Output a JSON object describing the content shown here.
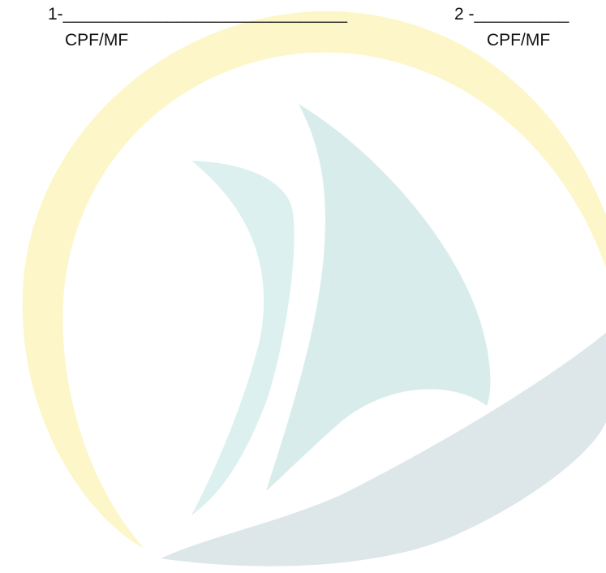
{
  "signatures": [
    {
      "line": "1-______________________________",
      "id_label": "CPF/MF"
    },
    {
      "line": "2 -__________",
      "id_label": "CPF/MF"
    }
  ],
  "watermark": {
    "icon": "sailboat-logo-icon",
    "colors": {
      "crescent": "#fdf6c8",
      "sail_left": "#dbf0ef",
      "sail_right": "#d9ecec",
      "wave": "#dde7ea"
    }
  }
}
